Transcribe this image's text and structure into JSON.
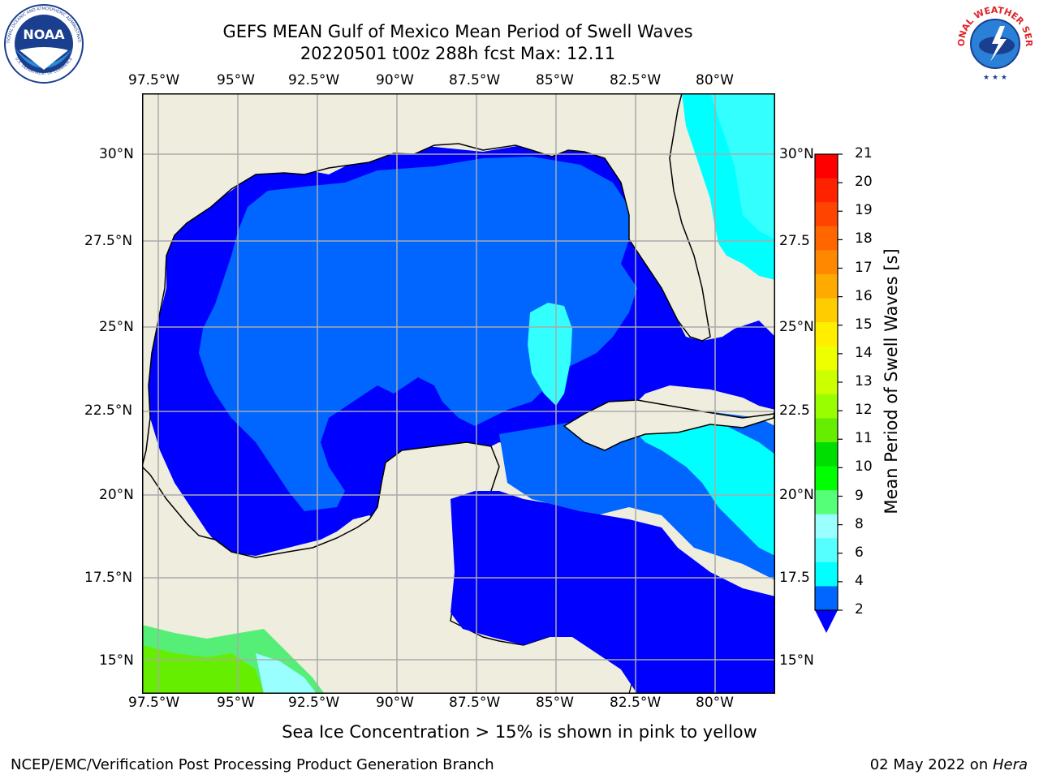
{
  "title": {
    "line1": "GEFS MEAN Gulf of Mexico Mean Period of Swell Waves",
    "line2": "20220501 t00z 288h fcst   Max: 12.11"
  },
  "logos": {
    "noaa_text": "NOAA",
    "noaa_ring_top": "NATIONAL OCEANIC AND ATMOSPHERIC ADMINISTRATION",
    "noaa_ring_bottom": "U.S. DEPARTMENT OF COMMERCE",
    "nws_ring": "NATIONAL WEATHER SERVICE"
  },
  "map": {
    "lon_ticks": [
      "97.5°W",
      "95°W",
      "92.5°W",
      "90°W",
      "87.5°W",
      "85°W",
      "82.5°W",
      "80°W"
    ],
    "lat_ticks_left": [
      "30°N",
      "27.5°N",
      "25°N",
      "22.5°N",
      "20°N",
      "17.5°N",
      "15°N"
    ],
    "lat_ticks_right": [
      "30°N",
      "27.5",
      "25°N",
      "22.5",
      "20°N",
      "17.5",
      "15°N"
    ],
    "grid": true,
    "colors": {
      "land": "#efedde",
      "band_2_4": "#0066ff",
      "band_below_2": "#0000ff",
      "band_4_6": "#00ffff",
      "band_6_8": "#33ffff",
      "band_8_9": "#99ffff",
      "band_9_10": "#55ee77",
      "band_10_11": "#00dd00",
      "band_11_12": "#66ee00"
    }
  },
  "colorbar": {
    "label": "Mean Period of Swell Waves [s]",
    "ticks": [
      "21",
      "20",
      "19",
      "18",
      "17",
      "16",
      "15",
      "14",
      "13",
      "12",
      "11",
      "10",
      "9",
      "8",
      "6",
      "4",
      "2"
    ],
    "bands": [
      "#ff0000",
      "#ff2200",
      "#ff4400",
      "#ff6600",
      "#ff8800",
      "#ffaa00",
      "#ffcc00",
      "#ffee00",
      "#eeff00",
      "#ccff00",
      "#99ff00",
      "#66ee00",
      "#00dd00",
      "#00ff00",
      "#55ff77",
      "#99ffff",
      "#55ffff",
      "#00ffff",
      "#0066ff"
    ],
    "extend_color": "#0000ff"
  },
  "note": "Sea Ice Concentration > 15% is shown in pink to yellow",
  "footer": {
    "left": "NCEP/EMC/Verification Post Processing Product Generation Branch",
    "right_date": "02 May 2022 on ",
    "right_machine": "Hera"
  }
}
